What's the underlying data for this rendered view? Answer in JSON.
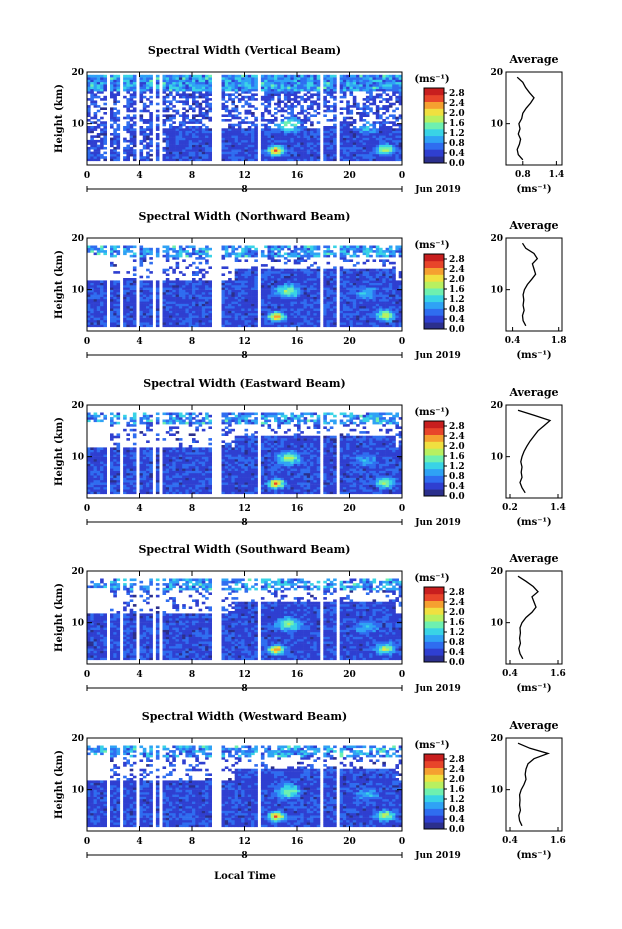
{
  "figure": {
    "xlabel": "Local Time",
    "date_label": "Jun 2019",
    "day_label": "8",
    "cbar_unit_label": "(ms⁻¹)",
    "avg_title": "Average",
    "avg_xlabel": "(ms⁻¹)",
    "ylabel": "Height (km)"
  },
  "colors": {
    "colormap": [
      "#2b2f8c",
      "#2f3fd0",
      "#2f6df0",
      "#2fa2f5",
      "#39d3e6",
      "#6ef0b0",
      "#b8f060",
      "#f0e040",
      "#f5a030",
      "#e8452a",
      "#c81e1e"
    ]
  },
  "chart_data": [
    {
      "type": "heatmap",
      "title": "Spectral Width (Vertical Beam)",
      "x_ticks": [
        "0",
        "4",
        "8",
        "12",
        "16",
        "20",
        "0"
      ],
      "x_range": [
        0,
        24
      ],
      "y_ticks": [
        "10",
        "20"
      ],
      "y_range": [
        2,
        20
      ],
      "colorbar_ticks": [
        "0.0",
        "0.4",
        "0.8",
        "1.2",
        "1.6",
        "2.0",
        "2.4",
        "2.8"
      ],
      "colorbar_range": [
        0,
        3.0
      ],
      "average_profile": {
        "x_ticks": [
          "0.8",
          "1.4"
        ],
        "x_range": [
          0.5,
          1.5
        ],
        "heights": [
          3,
          4,
          5,
          6,
          7,
          8,
          9,
          10,
          11,
          12,
          13,
          14,
          15,
          16,
          17,
          18,
          19
        ],
        "values": [
          0.8,
          0.72,
          0.7,
          0.74,
          0.76,
          0.72,
          0.75,
          0.73,
          0.78,
          0.8,
          0.86,
          0.94,
          1.0,
          0.92,
          0.85,
          0.8,
          0.7
        ]
      }
    },
    {
      "type": "heatmap",
      "title": "Spectral Width (Northward Beam)",
      "x_ticks": [
        "0",
        "4",
        "8",
        "12",
        "16",
        "20",
        "0"
      ],
      "x_range": [
        0,
        24
      ],
      "y_ticks": [
        "10",
        "20"
      ],
      "y_range": [
        2,
        20
      ],
      "colorbar_ticks": [
        "0.0",
        "0.4",
        "0.8",
        "1.2",
        "1.6",
        "2.0",
        "2.4",
        "2.8"
      ],
      "colorbar_range": [
        0,
        3.0
      ],
      "average_profile": {
        "x_ticks": [
          "0.4",
          "1.8"
        ],
        "x_range": [
          0.2,
          1.9
        ],
        "heights": [
          3,
          4,
          5,
          6,
          7,
          8,
          9,
          10,
          11,
          12,
          13,
          14,
          15,
          16,
          17,
          18,
          19
        ],
        "values": [
          0.8,
          0.72,
          0.7,
          0.75,
          0.72,
          0.74,
          0.72,
          0.76,
          0.85,
          0.98,
          1.1,
          1.05,
          1.0,
          1.15,
          1.05,
          0.8,
          0.7
        ]
      }
    },
    {
      "type": "heatmap",
      "title": "Spectral Width (Eastward Beam)",
      "x_ticks": [
        "0",
        "4",
        "8",
        "12",
        "16",
        "20",
        "0"
      ],
      "x_range": [
        0,
        24
      ],
      "y_ticks": [
        "10",
        "20"
      ],
      "y_range": [
        2,
        20
      ],
      "colorbar_ticks": [
        "0.0",
        "0.4",
        "0.8",
        "1.2",
        "1.6",
        "2.0",
        "2.4",
        "2.8"
      ],
      "colorbar_range": [
        0,
        3.0
      ],
      "average_profile": {
        "x_ticks": [
          "0.2",
          "1.4"
        ],
        "x_range": [
          0.1,
          1.5
        ],
        "heights": [
          3,
          4,
          5,
          6,
          7,
          8,
          9,
          10,
          11,
          12,
          13,
          14,
          15,
          16,
          17,
          18,
          19
        ],
        "values": [
          0.58,
          0.5,
          0.45,
          0.5,
          0.48,
          0.5,
          0.47,
          0.5,
          0.55,
          0.62,
          0.7,
          0.8,
          0.9,
          1.05,
          1.2,
          0.8,
          0.4
        ]
      }
    },
    {
      "type": "heatmap",
      "title": "Spectral Width (Southward Beam)",
      "x_ticks": [
        "0",
        "4",
        "8",
        "12",
        "16",
        "20",
        "0"
      ],
      "x_range": [
        0,
        24
      ],
      "y_ticks": [
        "10",
        "20"
      ],
      "y_range": [
        2,
        20
      ],
      "colorbar_ticks": [
        "0.0",
        "0.4",
        "0.8",
        "1.2",
        "1.6",
        "2.0",
        "2.4",
        "2.8"
      ],
      "colorbar_range": [
        0,
        3.0
      ],
      "average_profile": {
        "x_ticks": [
          "0.4",
          "1.6"
        ],
        "x_range": [
          0.3,
          1.7
        ],
        "heights": [
          3,
          4,
          5,
          6,
          7,
          8,
          9,
          10,
          11,
          12,
          13,
          14,
          15,
          16,
          17,
          18,
          19
        ],
        "values": [
          0.72,
          0.65,
          0.62,
          0.66,
          0.64,
          0.66,
          0.65,
          0.7,
          0.8,
          0.95,
          1.05,
          1.0,
          0.95,
          1.1,
          0.98,
          0.8,
          0.6
        ]
      }
    },
    {
      "type": "heatmap",
      "title": "Spectral Width (Westward Beam)",
      "x_ticks": [
        "0",
        "4",
        "8",
        "12",
        "16",
        "20",
        "0"
      ],
      "x_range": [
        0,
        24
      ],
      "y_ticks": [
        "10",
        "20"
      ],
      "y_range": [
        2,
        20
      ],
      "colorbar_ticks": [
        "0.0",
        "0.4",
        "0.8",
        "1.2",
        "1.6",
        "2.0",
        "2.4",
        "2.8"
      ],
      "colorbar_range": [
        0,
        3.0
      ],
      "average_profile": {
        "x_ticks": [
          "0.4",
          "1.6"
        ],
        "x_range": [
          0.3,
          1.7
        ],
        "heights": [
          3,
          4,
          5,
          6,
          7,
          8,
          9,
          10,
          11,
          12,
          13,
          14,
          15,
          16,
          17,
          18,
          19
        ],
        "values": [
          0.7,
          0.64,
          0.62,
          0.66,
          0.64,
          0.65,
          0.64,
          0.68,
          0.75,
          0.8,
          0.78,
          0.8,
          0.85,
          1.0,
          1.35,
          0.9,
          0.6
        ]
      }
    }
  ]
}
